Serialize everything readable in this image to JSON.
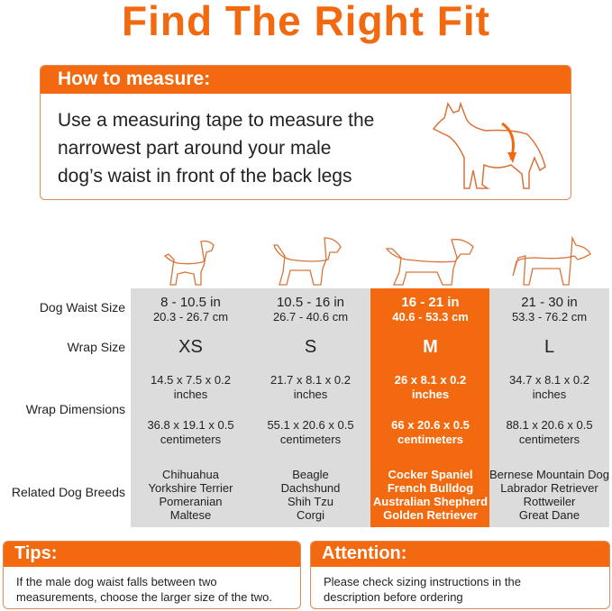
{
  "title": "Find The Right Fit",
  "how": {
    "heading": "How to measure:",
    "lines": [
      "Use a measuring tape to measure the",
      "narrowest part around your male",
      "dog’s waist in front of the back legs"
    ]
  },
  "row_labels": {
    "waist": "Dog Waist Size",
    "wrap": "Wrap Size",
    "dims": "Wrap Dimensions",
    "breeds": "Related Dog Breeds"
  },
  "columns": [
    {
      "waist_in": "8 - 10.5 in",
      "waist_cm": "20.3 - 26.7 cm",
      "size": "XS",
      "dim_in": "14.5 x 7.5 x 0.2",
      "unit_in": "inches",
      "dim_cm": "36.8 x 19.1 x 0.5",
      "unit_cm": "centimeters",
      "breeds": [
        "Chihuahua",
        "Yorkshire Terrier",
        "Pomeranian",
        "Maltese"
      ],
      "highlighted": false
    },
    {
      "waist_in": "10.5 - 16 in",
      "waist_cm": "26.7 - 40.6 cm",
      "size": "S",
      "dim_in": "21.7 x 8.1 x 0.2",
      "unit_in": "inches",
      "dim_cm": "55.1 x 20.6 x 0.5",
      "unit_cm": "centimeters",
      "breeds": [
        "Beagle",
        "Dachshund",
        "Shih Tzu",
        "Corgi"
      ],
      "highlighted": false
    },
    {
      "waist_in": "16 - 21 in",
      "waist_cm": "40.6 - 53.3 cm",
      "size": "M",
      "dim_in": "26 x 8.1 x 0.2",
      "unit_in": "inches",
      "dim_cm": "66 x 20.6 x 0.5",
      "unit_cm": "centimeters",
      "breeds": [
        "Cocker Spaniel",
        "French Bulldog",
        "Australian Shepherd",
        "Golden Retriever"
      ],
      "highlighted": true
    },
    {
      "waist_in": "21 - 30 in",
      "waist_cm": "53.3 - 76.2 cm",
      "size": "L",
      "dim_in": "34.7 x 8.1 x 0.2",
      "unit_in": "inches",
      "dim_cm": "88.1 x 20.6 x 0.5",
      "unit_cm": "centimeters",
      "breeds": [
        "Bernese Mountain Dog",
        "Labrador Retriever",
        "Rottweiler",
        "Great Dane"
      ],
      "highlighted": false
    }
  ],
  "tips": {
    "heading": "Tips:",
    "lines": [
      "If the male dog waist falls between two",
      "measurements, choose the larger size of the two."
    ]
  },
  "attention": {
    "heading": "Attention:",
    "lines": [
      "Please check sizing instructions in the",
      "description before ordering"
    ]
  },
  "colors": {
    "accent": "#f2690f",
    "cell": "#dcdcdc"
  }
}
